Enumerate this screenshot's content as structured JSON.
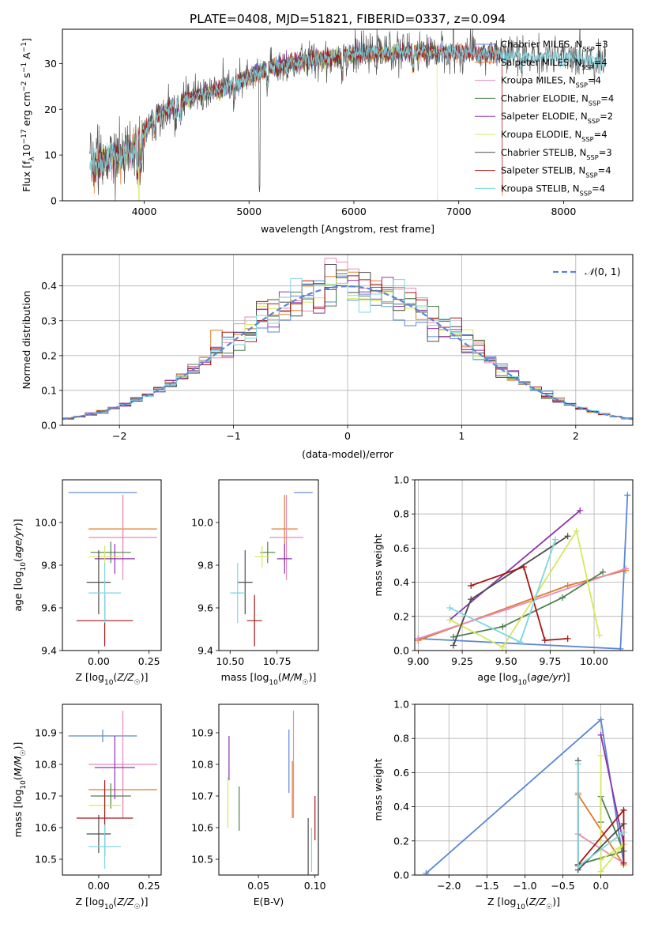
{
  "title": "PLATE=0408, MJD=51821, FIBERID=0337, z=0.094",
  "colors": {
    "chabrier_miles": "#5b86d8",
    "salpeter_miles": "#e07a2a",
    "kroupa_miles": "#e68ab8",
    "chabrier_elodie": "#4e7f4e",
    "salpeter_elodie": "#8e33b0",
    "kroupa_elodie": "#d6e85a",
    "chabrier_stelib": "#4d4d4d",
    "salpeter_stelib": "#a81717",
    "kroupa_stelib": "#7dd6e0",
    "grid": "#b0b0b0",
    "normal": "#5b86d8"
  },
  "chart_data": [
    {
      "type": "line",
      "xlabel": "wavelength [Angstrom, rest frame]",
      "ylabel": "Flux [f_λ 10^-17 erg cm^-2 s^-1 A^-1]",
      "xlim": [
        3220,
        8660
      ],
      "ylim": [
        0,
        37.5
      ],
      "xticks": [
        4000,
        5000,
        6000,
        7000,
        8000
      ],
      "yticks": [
        0,
        10,
        20,
        30
      ],
      "grid": false,
      "legend": "top-right",
      "legend_entries": [
        {
          "library": "Chabrier MILES",
          "n": "3"
        },
        {
          "library": "Salpeter MILES",
          "n": "4"
        },
        {
          "library": "Kroupa MILES",
          "n": "4"
        },
        {
          "library": "Chabrier ELODIE",
          "n": "4"
        },
        {
          "library": "Salpeter ELODIE",
          "n": "2"
        },
        {
          "library": "Kroupa ELODIE",
          "n": "4"
        },
        {
          "library": "Chabrier STELIB",
          "n": "3"
        },
        {
          "library": "Salpeter STELIB",
          "n": "4"
        },
        {
          "library": "Kroupa STELIB",
          "n": "4"
        }
      ],
      "nssp_prefix": "N",
      "nssp_sub": "SSP",
      "continuum": [
        [
          3500,
          8
        ],
        [
          3700,
          9.5
        ],
        [
          3900,
          11
        ],
        [
          4000,
          15
        ],
        [
          4100,
          18.5
        ],
        [
          4300,
          21
        ],
        [
          4500,
          23
        ],
        [
          4800,
          25
        ],
        [
          5000,
          27
        ],
        [
          5200,
          29
        ],
        [
          5500,
          30.5
        ],
        [
          6000,
          32
        ],
        [
          6500,
          32.5
        ],
        [
          7000,
          32.5
        ],
        [
          7400,
          32
        ],
        [
          7800,
          31.5
        ],
        [
          8200,
          31
        ],
        [
          8400,
          30.5
        ]
      ]
    },
    {
      "type": "histogram",
      "xlabel": "(data-model)/error",
      "ylabel": "Normed distribution",
      "xlim": [
        -2.5,
        2.5
      ],
      "ylim": [
        0,
        0.49
      ],
      "xticks": [
        -2,
        -1,
        0,
        1,
        2
      ],
      "yticks": [
        0.0,
        0.1,
        0.2,
        0.3,
        0.4
      ],
      "grid": true,
      "legend": "top-right",
      "normal_label": "N(0, 1)",
      "normal_mean": 0,
      "normal_sigma": 1
    },
    {
      "type": "scatter",
      "xlabel": "Z [log10(Z/Z☉)]",
      "ylabel": "age [log10(age/yr)]",
      "xlim": [
        -0.18,
        0.31
      ],
      "ylim": [
        9.4,
        10.2
      ],
      "xticks": [
        "0.00",
        "0.25"
      ],
      "yticks": [
        "9.4",
        "9.6",
        "9.8",
        "10.0"
      ],
      "points": [
        {
          "key": "chabrier_miles",
          "x": 0.02,
          "y": 10.14,
          "xerr": 0.17,
          "yerr": 0.0
        },
        {
          "key": "salpeter_miles",
          "x": 0.12,
          "y": 9.97,
          "xerr": 0.17,
          "yerr": 0.16
        },
        {
          "key": "kroupa_miles",
          "x": 0.12,
          "y": 9.93,
          "xerr": 0.17,
          "yerr": 0.2
        },
        {
          "key": "chabrier_elodie",
          "x": 0.06,
          "y": 9.86,
          "xerr": 0.1,
          "yerr": 0.05
        },
        {
          "key": "salpeter_elodie",
          "x": 0.08,
          "y": 9.83,
          "xerr": 0.1,
          "yerr": 0.07
        },
        {
          "key": "kroupa_elodie",
          "x": 0.03,
          "y": 9.84,
          "xerr": 0.08,
          "yerr": 0.05
        },
        {
          "key": "chabrier_stelib",
          "x": 0.0,
          "y": 9.72,
          "xerr": 0.06,
          "yerr": 0.15
        },
        {
          "key": "salpeter_stelib",
          "x": 0.03,
          "y": 9.54,
          "xerr": 0.14,
          "yerr": 0.12
        },
        {
          "key": "kroupa_stelib",
          "x": 0.03,
          "y": 9.67,
          "xerr": 0.08,
          "yerr": 0.14
        }
      ]
    },
    {
      "type": "scatter",
      "xlabel": "mass [log10(M/M☉)]",
      "ylabel": "",
      "xlim": [
        10.44,
        10.97
      ],
      "ylim": [
        9.4,
        10.2
      ],
      "xticks": [
        "10.50",
        "10.75"
      ],
      "yticks": [
        "9.4",
        "9.6",
        "9.8",
        "10.0"
      ],
      "points": [
        {
          "key": "chabrier_miles",
          "x": 10.89,
          "y": 10.14,
          "xerr": 0.05,
          "yerr": 0.0
        },
        {
          "key": "salpeter_miles",
          "x": 10.79,
          "y": 9.97,
          "xerr": 0.07,
          "yerr": 0.16
        },
        {
          "key": "kroupa_miles",
          "x": 10.8,
          "y": 9.93,
          "xerr": 0.09,
          "yerr": 0.2
        },
        {
          "key": "chabrier_elodie",
          "x": 10.7,
          "y": 9.86,
          "xerr": 0.04,
          "yerr": 0.05
        },
        {
          "key": "salpeter_elodie",
          "x": 10.79,
          "y": 9.83,
          "xerr": 0.04,
          "yerr": 0.07
        },
        {
          "key": "kroupa_elodie",
          "x": 10.67,
          "y": 9.84,
          "xerr": 0.04,
          "yerr": 0.05
        },
        {
          "key": "chabrier_stelib",
          "x": 10.58,
          "y": 9.72,
          "xerr": 0.04,
          "yerr": 0.15
        },
        {
          "key": "salpeter_stelib",
          "x": 10.63,
          "y": 9.54,
          "xerr": 0.04,
          "yerr": 0.12
        },
        {
          "key": "kroupa_stelib",
          "x": 10.54,
          "y": 9.67,
          "xerr": 0.04,
          "yerr": 0.14
        }
      ]
    },
    {
      "type": "line",
      "xlabel": "age [log10(age/yr)]",
      "ylabel": "mass weight",
      "xlim": [
        8.98,
        10.22
      ],
      "ylim": [
        0,
        1.0
      ],
      "xticks": [
        "9.00",
        "9.25",
        "9.50",
        "9.75",
        "10.00"
      ],
      "yticks": [
        "0.0",
        "0.2",
        "0.4",
        "0.6",
        "0.8",
        "1.0"
      ],
      "grid": true,
      "series": [
        {
          "key": "chabrier_miles",
          "points": [
            [
              9.0,
              0.07
            ],
            [
              10.15,
              0.01
            ],
            [
              10.19,
              0.91
            ]
          ]
        },
        {
          "key": "salpeter_miles",
          "points": [
            [
              9.0,
              0.06
            ],
            [
              9.85,
              0.38
            ],
            [
              10.18,
              0.47
            ]
          ]
        },
        {
          "key": "kroupa_miles",
          "points": [
            [
              9.0,
              0.07
            ],
            [
              9.5,
              0.24
            ],
            [
              10.18,
              0.48
            ]
          ]
        },
        {
          "key": "chabrier_elodie",
          "points": [
            [
              9.2,
              0.08
            ],
            [
              9.48,
              0.14
            ],
            [
              9.82,
              0.31
            ],
            [
              10.05,
              0.46
            ]
          ]
        },
        {
          "key": "salpeter_elodie",
          "points": [
            [
              9.18,
              0.18
            ],
            [
              9.92,
              0.82
            ]
          ]
        },
        {
          "key": "kroupa_elodie",
          "points": [
            [
              9.18,
              0.18
            ],
            [
              9.48,
              0.02
            ],
            [
              9.9,
              0.7
            ],
            [
              10.03,
              0.09
            ]
          ]
        },
        {
          "key": "chabrier_stelib",
          "points": [
            [
              9.2,
              0.03
            ],
            [
              9.3,
              0.3
            ],
            [
              9.85,
              0.67
            ]
          ]
        },
        {
          "key": "salpeter_stelib",
          "points": [
            [
              9.3,
              0.38
            ],
            [
              9.6,
              0.49
            ],
            [
              9.72,
              0.06
            ],
            [
              9.85,
              0.07
            ]
          ]
        },
        {
          "key": "kroupa_stelib",
          "points": [
            [
              9.18,
              0.25
            ],
            [
              9.58,
              0.05
            ],
            [
              9.78,
              0.65
            ]
          ]
        }
      ]
    },
    {
      "type": "scatter",
      "xlabel": "Z [log10(Z/Z☉)]",
      "ylabel": "mass [log10(M/M☉)]",
      "xlim": [
        -0.18,
        0.31
      ],
      "ylim": [
        10.45,
        10.99
      ],
      "xticks": [
        "0.00",
        "0.25"
      ],
      "yticks": [
        "10.5",
        "10.6",
        "10.7",
        "10.8",
        "10.9"
      ],
      "points": [
        {
          "key": "chabrier_miles",
          "x": 0.02,
          "y": 10.89,
          "xerr": 0.17,
          "yerr": 0.02
        },
        {
          "key": "salpeter_miles",
          "x": 0.12,
          "y": 10.72,
          "xerr": 0.17,
          "yerr": 0.09
        },
        {
          "key": "kroupa_miles",
          "x": 0.12,
          "y": 10.8,
          "xerr": 0.17,
          "yerr": 0.17
        },
        {
          "key": "chabrier_elodie",
          "x": 0.06,
          "y": 10.7,
          "xerr": 0.1,
          "yerr": 0.04
        },
        {
          "key": "salpeter_elodie",
          "x": 0.08,
          "y": 10.79,
          "xerr": 0.1,
          "yerr": 0.1
        },
        {
          "key": "kroupa_elodie",
          "x": 0.03,
          "y": 10.67,
          "xerr": 0.08,
          "yerr": 0.08
        },
        {
          "key": "chabrier_stelib",
          "x": 0.0,
          "y": 10.58,
          "xerr": 0.06,
          "yerr": 0.06
        },
        {
          "key": "salpeter_stelib",
          "x": 0.03,
          "y": 10.63,
          "xerr": 0.14,
          "yerr": 0.12
        },
        {
          "key": "kroupa_stelib",
          "x": 0.03,
          "y": 10.54,
          "xerr": 0.08,
          "yerr": 0.07
        }
      ]
    },
    {
      "type": "errorbar",
      "xlabel": "E(B-V)",
      "ylabel": "",
      "xlim": [
        0.015,
        0.103
      ],
      "ylim": [
        10.45,
        10.99
      ],
      "xticks": [
        "0.05",
        "0.10"
      ],
      "yticks": [
        "10.5",
        "10.6",
        "10.7",
        "10.8",
        "10.9"
      ],
      "points": [
        {
          "key": "chabrier_miles",
          "x": 0.077,
          "y": 10.81,
          "yerr": 0.1
        },
        {
          "key": "salpeter_miles",
          "x": 0.08,
          "y": 10.72,
          "yerr": 0.09
        },
        {
          "key": "kroupa_miles",
          "x": 0.081,
          "y": 10.8,
          "yerr": 0.17
        },
        {
          "key": "chabrier_elodie",
          "x": 0.033,
          "y": 10.66,
          "yerr": 0.07
        },
        {
          "key": "salpeter_elodie",
          "x": 0.024,
          "y": 10.82,
          "yerr": 0.07
        },
        {
          "key": "kroupa_elodie",
          "x": 0.023,
          "y": 10.68,
          "yerr": 0.08
        },
        {
          "key": "chabrier_stelib",
          "x": 0.094,
          "y": 10.53,
          "yerr": 0.1
        },
        {
          "key": "salpeter_stelib",
          "x": 0.1,
          "y": 10.63,
          "yerr": 0.07
        },
        {
          "key": "kroupa_stelib",
          "x": 0.097,
          "y": 10.53,
          "yerr": 0.07
        }
      ]
    },
    {
      "type": "line",
      "xlabel": "Z [log10(Z/Z☉)]",
      "ylabel": "mass weight",
      "xlim": [
        -2.45,
        0.42
      ],
      "ylim": [
        0,
        1.0
      ],
      "xticks": [
        "−2.0",
        "−1.5",
        "−1.0",
        "−0.5",
        "0.0"
      ],
      "xtick_values": [
        -2.0,
        -1.5,
        -1.0,
        -0.5,
        0.0
      ],
      "yticks": [
        "0.0",
        "0.2",
        "0.4",
        "0.6",
        "0.8",
        "1.0"
      ],
      "grid": true,
      "series": [
        {
          "key": "chabrier_miles",
          "points": [
            [
              -2.3,
              0.01
            ],
            [
              0.0,
              0.91
            ],
            [
              0.3,
              0.07
            ]
          ]
        },
        {
          "key": "salpeter_miles",
          "points": [
            [
              -0.3,
              0.47
            ],
            [
              0.3,
              0.06
            ]
          ]
        },
        {
          "key": "kroupa_miles",
          "points": [
            [
              -0.3,
              0.48
            ],
            [
              -0.3,
              0.24
            ],
            [
              0.3,
              0.07
            ]
          ]
        },
        {
          "key": "chabrier_elodie",
          "points": [
            [
              -0.3,
              0.06
            ],
            [
              0.3,
              0.14
            ],
            [
              0.0,
              0.46
            ],
            [
              0.0,
              0.31
            ]
          ]
        },
        {
          "key": "salpeter_elodie",
          "points": [
            [
              0.0,
              0.82
            ],
            [
              0.3,
              0.18
            ]
          ]
        },
        {
          "key": "kroupa_elodie",
          "points": [
            [
              0.0,
              0.7
            ],
            [
              0.0,
              0.02
            ],
            [
              0.3,
              0.18
            ],
            [
              0.0,
              0.09
            ]
          ]
        },
        {
          "key": "chabrier_stelib",
          "points": [
            [
              -0.3,
              0.67
            ],
            [
              -0.3,
              0.03
            ],
            [
              0.3,
              0.3
            ]
          ]
        },
        {
          "key": "salpeter_stelib",
          "points": [
            [
              -0.3,
              0.06
            ],
            [
              0.3,
              0.38
            ],
            [
              0.3,
              0.07
            ]
          ]
        },
        {
          "key": "kroupa_stelib",
          "points": [
            [
              -0.3,
              0.65
            ],
            [
              -0.3,
              0.05
            ],
            [
              0.3,
              0.25
            ]
          ]
        }
      ]
    }
  ]
}
